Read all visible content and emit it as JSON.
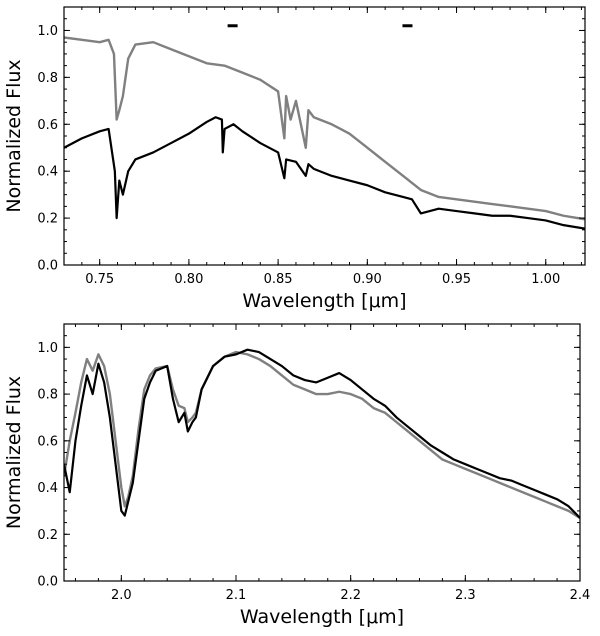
{
  "chart_data": [
    {
      "type": "line",
      "title": "",
      "xlabel": "Wavelength [μm]",
      "ylabel": "Normalized Flux",
      "xlim": [
        0.73,
        1.022
      ],
      "ylim": [
        0.0,
        1.1
      ],
      "xticks": [
        0.75,
        0.8,
        0.85,
        0.9,
        0.95,
        1.0
      ],
      "xtick_labels": [
        "0.75",
        "0.80",
        "0.85",
        "0.90",
        "0.95",
        "1.00"
      ],
      "yticks": [
        0.0,
        0.2,
        0.4,
        0.6,
        0.8,
        1.0
      ],
      "ytick_labels": [
        "0.0",
        "0.2",
        "0.4",
        "0.6",
        "0.8",
        "1.0"
      ],
      "grid": false,
      "markers": [
        {
          "x": 0.8245,
          "y": 1.02
        },
        {
          "x": 0.9225,
          "y": 1.02
        }
      ],
      "series": [
        {
          "name": "gray spectrum",
          "color": "#808080",
          "x": [
            0.73,
            0.74,
            0.75,
            0.755,
            0.758,
            0.7595,
            0.761,
            0.763,
            0.766,
            0.77,
            0.78,
            0.79,
            0.8,
            0.81,
            0.82,
            0.83,
            0.84,
            0.85,
            0.8535,
            0.8545,
            0.857,
            0.86,
            0.8655,
            0.867,
            0.87,
            0.88,
            0.89,
            0.9,
            0.91,
            0.92,
            0.93,
            0.94,
            0.95,
            0.96,
            0.97,
            0.98,
            0.99,
            1.0,
            1.01,
            1.022
          ],
          "y": [
            0.97,
            0.96,
            0.95,
            0.96,
            0.9,
            0.62,
            0.66,
            0.72,
            0.88,
            0.94,
            0.95,
            0.92,
            0.89,
            0.86,
            0.85,
            0.82,
            0.79,
            0.74,
            0.54,
            0.72,
            0.62,
            0.7,
            0.5,
            0.66,
            0.63,
            0.6,
            0.56,
            0.5,
            0.44,
            0.38,
            0.32,
            0.29,
            0.28,
            0.27,
            0.26,
            0.25,
            0.24,
            0.23,
            0.21,
            0.195
          ]
        },
        {
          "name": "black spectrum",
          "color": "#000000",
          "x": [
            0.73,
            0.74,
            0.75,
            0.755,
            0.7585,
            0.7595,
            0.761,
            0.763,
            0.766,
            0.77,
            0.78,
            0.79,
            0.8,
            0.81,
            0.815,
            0.8185,
            0.819,
            0.82,
            0.825,
            0.83,
            0.84,
            0.85,
            0.8535,
            0.8545,
            0.86,
            0.8655,
            0.867,
            0.87,
            0.88,
            0.89,
            0.9,
            0.91,
            0.92,
            0.925,
            0.93,
            0.94,
            0.95,
            0.96,
            0.97,
            0.98,
            0.99,
            1.0,
            1.01,
            1.022
          ],
          "y": [
            0.5,
            0.54,
            0.57,
            0.58,
            0.4,
            0.2,
            0.36,
            0.3,
            0.4,
            0.45,
            0.48,
            0.52,
            0.56,
            0.61,
            0.63,
            0.62,
            0.48,
            0.58,
            0.6,
            0.57,
            0.52,
            0.48,
            0.37,
            0.45,
            0.44,
            0.38,
            0.43,
            0.41,
            0.38,
            0.36,
            0.34,
            0.31,
            0.29,
            0.28,
            0.22,
            0.24,
            0.23,
            0.22,
            0.21,
            0.21,
            0.2,
            0.19,
            0.17,
            0.155
          ]
        }
      ]
    },
    {
      "type": "line",
      "title": "",
      "xlabel": "Wavelength [μm]",
      "ylabel": "Normalized Flux",
      "xlim": [
        1.95,
        2.4
      ],
      "ylim": [
        0.0,
        1.1
      ],
      "xticks": [
        2.0,
        2.1,
        2.2,
        2.3,
        2.4
      ],
      "xtick_labels": [
        "2.0",
        "2.1",
        "2.2",
        "2.3",
        "2.4"
      ],
      "yticks": [
        0.0,
        0.2,
        0.4,
        0.6,
        0.8,
        1.0
      ],
      "ytick_labels": [
        "0.0",
        "0.2",
        "0.4",
        "0.6",
        "0.8",
        "1.0"
      ],
      "grid": false,
      "markers": [],
      "series": [
        {
          "name": "gray spectrum",
          "color": "#808080",
          "x": [
            1.95,
            1.955,
            1.96,
            1.965,
            1.97,
            1.975,
            1.98,
            1.985,
            1.99,
            1.995,
            2.0,
            2.003,
            2.006,
            2.01,
            2.015,
            2.02,
            2.025,
            2.03,
            2.04,
            2.045,
            2.05,
            2.055,
            2.058,
            2.062,
            2.065,
            2.07,
            2.08,
            2.09,
            2.1,
            2.11,
            2.12,
            2.13,
            2.14,
            2.15,
            2.16,
            2.17,
            2.18,
            2.19,
            2.2,
            2.21,
            2.22,
            2.23,
            2.24,
            2.25,
            2.26,
            2.27,
            2.28,
            2.29,
            2.3,
            2.31,
            2.32,
            2.33,
            2.34,
            2.35,
            2.36,
            2.37,
            2.38,
            2.39,
            2.4
          ],
          "y": [
            0.45,
            0.6,
            0.72,
            0.85,
            0.95,
            0.9,
            0.97,
            0.92,
            0.8,
            0.6,
            0.4,
            0.32,
            0.36,
            0.45,
            0.65,
            0.82,
            0.88,
            0.91,
            0.92,
            0.82,
            0.75,
            0.74,
            0.68,
            0.7,
            0.72,
            0.82,
            0.92,
            0.96,
            0.98,
            0.97,
            0.95,
            0.92,
            0.88,
            0.84,
            0.82,
            0.8,
            0.8,
            0.81,
            0.8,
            0.78,
            0.74,
            0.72,
            0.68,
            0.64,
            0.6,
            0.56,
            0.52,
            0.5,
            0.48,
            0.46,
            0.44,
            0.42,
            0.4,
            0.38,
            0.36,
            0.34,
            0.32,
            0.3,
            0.27
          ]
        },
        {
          "name": "black spectrum",
          "color": "#000000",
          "x": [
            1.95,
            1.955,
            1.96,
            1.965,
            1.97,
            1.975,
            1.98,
            1.985,
            1.99,
            1.995,
            2.0,
            2.003,
            2.006,
            2.01,
            2.015,
            2.02,
            2.025,
            2.03,
            2.04,
            2.045,
            2.05,
            2.055,
            2.058,
            2.062,
            2.065,
            2.07,
            2.08,
            2.09,
            2.1,
            2.11,
            2.12,
            2.13,
            2.14,
            2.15,
            2.16,
            2.17,
            2.18,
            2.19,
            2.2,
            2.21,
            2.22,
            2.23,
            2.24,
            2.25,
            2.26,
            2.27,
            2.28,
            2.29,
            2.3,
            2.31,
            2.32,
            2.33,
            2.34,
            2.35,
            2.36,
            2.37,
            2.38,
            2.39,
            2.4
          ],
          "y": [
            0.5,
            0.38,
            0.6,
            0.75,
            0.88,
            0.8,
            0.93,
            0.85,
            0.7,
            0.5,
            0.3,
            0.28,
            0.34,
            0.42,
            0.6,
            0.78,
            0.85,
            0.9,
            0.92,
            0.78,
            0.68,
            0.72,
            0.64,
            0.68,
            0.7,
            0.82,
            0.92,
            0.96,
            0.97,
            0.99,
            0.98,
            0.95,
            0.92,
            0.88,
            0.86,
            0.85,
            0.87,
            0.89,
            0.86,
            0.82,
            0.78,
            0.75,
            0.7,
            0.66,
            0.62,
            0.58,
            0.55,
            0.52,
            0.5,
            0.48,
            0.46,
            0.44,
            0.43,
            0.41,
            0.39,
            0.37,
            0.35,
            0.32,
            0.27
          ]
        }
      ]
    }
  ]
}
